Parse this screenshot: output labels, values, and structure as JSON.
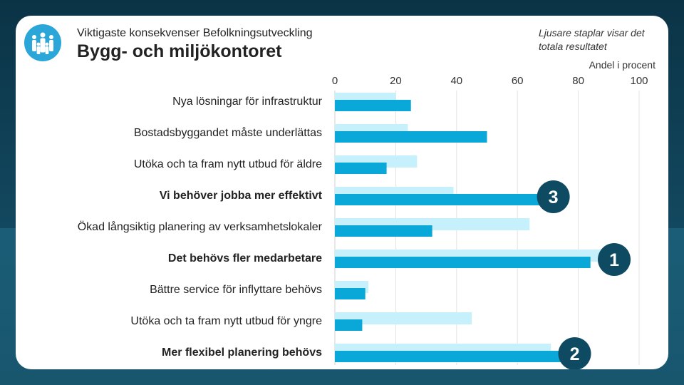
{
  "header": {
    "subtitle": "Viktigaste konsekvenser Befolkningsutveckling",
    "title": "Bygg- och miljökontoret",
    "note": "Ljusare staplar visar det totala resultatet",
    "unit": "Andel i procent"
  },
  "logo": {
    "icon": "people-group-icon",
    "color": "#2ba6d8"
  },
  "colors": {
    "dark": "#0aa8d8",
    "light": "#c6f0fb",
    "badge": "#0f4a63"
  },
  "chart_data": {
    "type": "bar",
    "orientation": "horizontal",
    "title": "Bygg- och miljökontoret",
    "subtitle": "Viktigaste konsekvenser Befolkningsutveckling",
    "xlabel": "Andel i procent",
    "xlim": [
      0,
      100
    ],
    "xticks": [
      "0",
      "20",
      "40",
      "60",
      "80",
      "100"
    ],
    "grid": true,
    "categories": [
      "Nya lösningar för infrastruktur",
      "Bostadsbyggandet måste underlättas",
      "Utöka och ta fram nytt utbud för äldre",
      "Vi behöver jobba mer effektivt",
      "Ökad långsiktig planering av verksamhetslokaler",
      "Det behövs fler medarbetare",
      "Bättre service för inflyttare behövs",
      "Utöka och ta fram nytt utbud för yngre",
      "Mer flexibel planering behövs"
    ],
    "bold": [
      false,
      false,
      false,
      true,
      false,
      true,
      false,
      false,
      true
    ],
    "series": [
      {
        "values": [
          20,
          24,
          27,
          39,
          64,
          89,
          11,
          45,
          71
        ]
      },
      {
        "values": [
          25,
          50,
          17,
          69,
          32,
          84,
          10,
          9,
          76
        ]
      }
    ],
    "ranks": [
      {
        "category_index": 5,
        "label": "1"
      },
      {
        "category_index": 8,
        "label": "2"
      },
      {
        "category_index": 3,
        "label": "3"
      }
    ]
  }
}
